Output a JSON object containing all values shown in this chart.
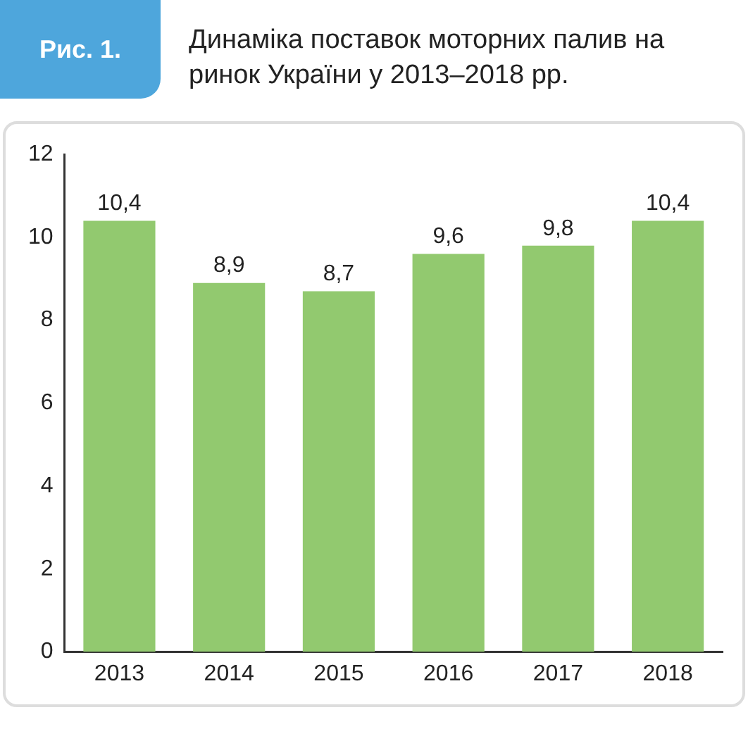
{
  "chart_data": {
    "type": "bar",
    "title": "Динаміка поставок моторних палив на ринок України у 2013–2018 рр.",
    "annotations": [
      "Рис. 1."
    ],
    "categories": [
      "2013",
      "2014",
      "2015",
      "2016",
      "2017",
      "2018"
    ],
    "values": [
      10.4,
      8.9,
      8.7,
      9.6,
      9.8,
      10.4
    ],
    "value_labels": [
      "10,4",
      "8,9",
      "8,7",
      "9,6",
      "9,8",
      "10,4"
    ],
    "color": "#92c96f",
    "ylim": [
      0,
      12
    ],
    "yticks": [
      0,
      2,
      4,
      6,
      8,
      10,
      12
    ],
    "grid": false,
    "legend": false
  }
}
